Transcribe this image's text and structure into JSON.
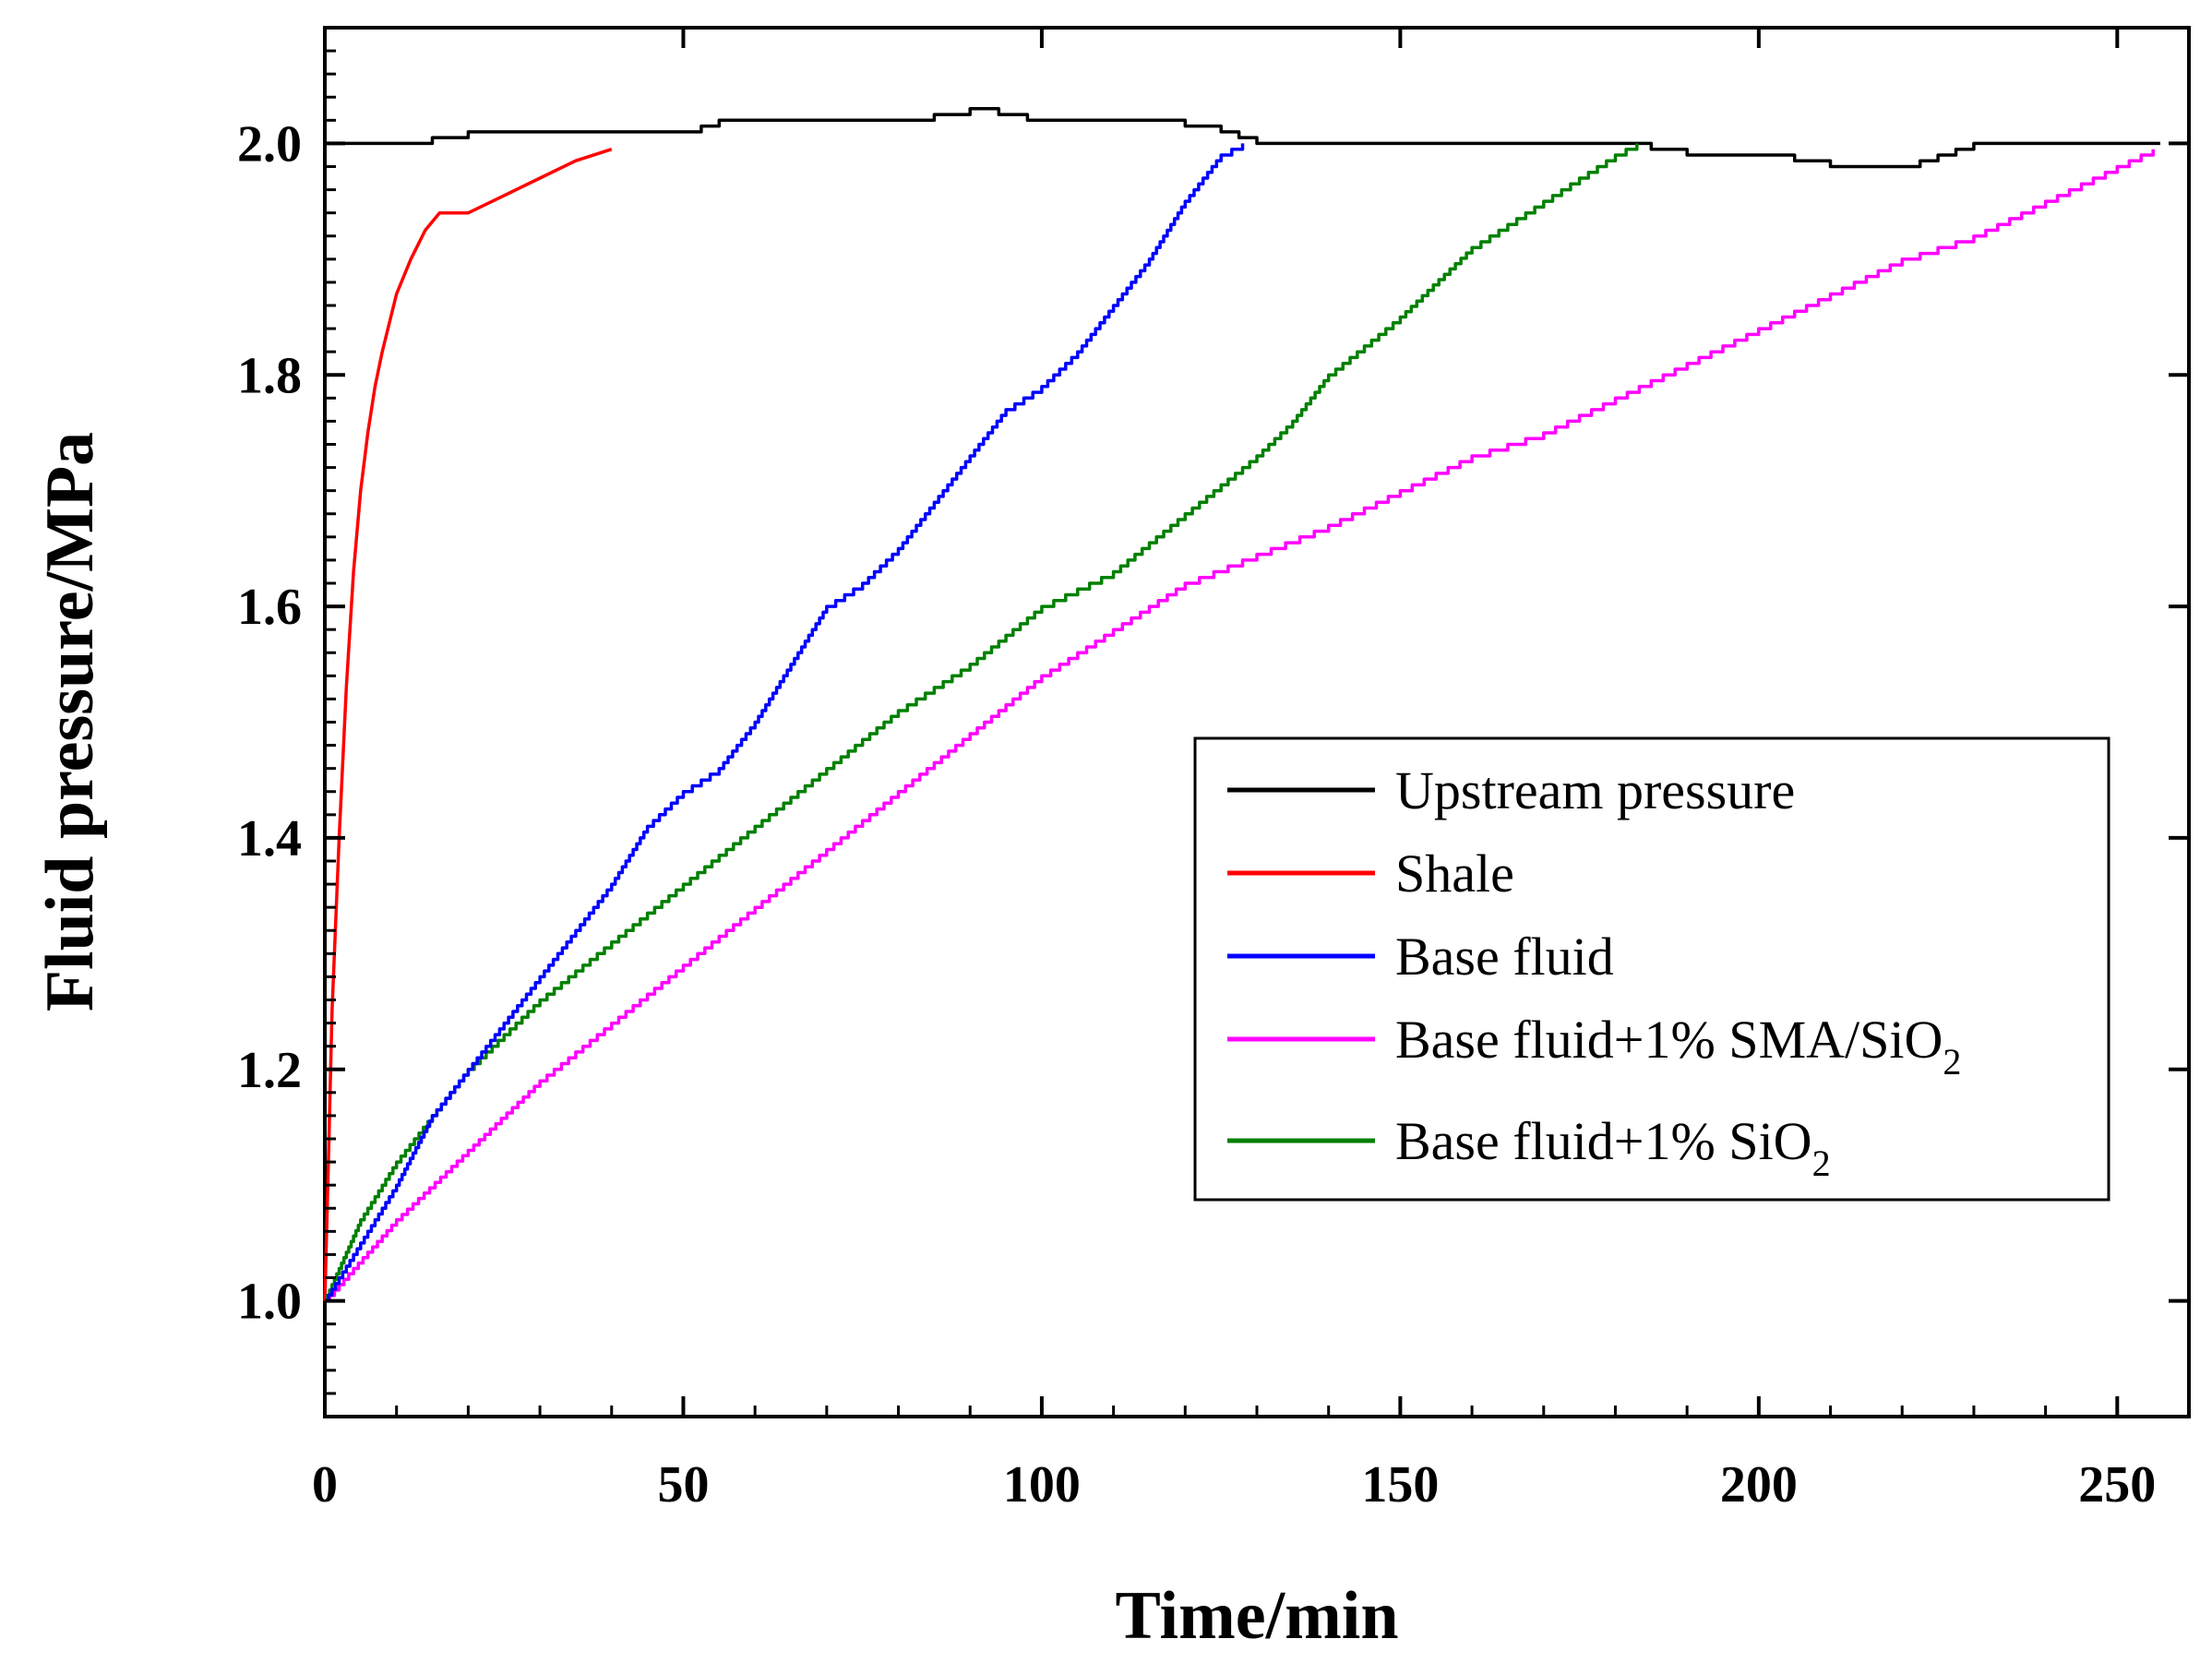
{
  "chart_data": {
    "type": "line",
    "title": "",
    "xlabel": "Time/min",
    "ylabel": "Fluid pressure/MPa",
    "xlim": [
      0,
      260
    ],
    "ylim": [
      0.9,
      2.1
    ],
    "xticks": [
      0,
      50,
      100,
      150,
      200,
      250
    ],
    "xtick_labels": [
      "0",
      "50",
      "100",
      "150",
      "200",
      "250"
    ],
    "yticks": [
      1.0,
      1.2,
      1.4,
      1.6,
      1.8,
      2.0
    ],
    "ytick_labels": [
      "1.0",
      "1.2",
      "1.4",
      "1.6",
      "1.8",
      "2.0"
    ],
    "grid": false,
    "legend_position": "center-right",
    "series": [
      {
        "name": "Upstream pressure",
        "label_main": "Upstream pressure",
        "label_sub": "",
        "color": "#000000",
        "x": [
          0,
          10,
          20,
          30,
          40,
          50,
          55,
          60,
          70,
          80,
          90,
          98,
          105,
          115,
          125,
          130,
          140,
          150,
          160,
          170,
          180,
          190,
          200,
          210,
          220,
          230,
          240,
          250,
          256
        ],
        "y": [
          2.0,
          2.0,
          2.01,
          2.01,
          2.01,
          2.01,
          2.02,
          2.02,
          2.02,
          2.02,
          2.03,
          2.02,
          2.02,
          2.02,
          2.01,
          2.0,
          2.0,
          2.0,
          2.0,
          2.0,
          2.0,
          1.99,
          1.99,
          1.98,
          1.98,
          2.0,
          2.0,
          2.0,
          2.0
        ]
      },
      {
        "name": "Shale",
        "label_main": "Shale",
        "label_sub": "",
        "color": "#ff0000",
        "x": [
          0,
          0.5,
          1,
          2,
          3,
          4,
          5,
          6,
          7,
          8,
          10,
          12,
          14,
          16,
          20,
          25,
          30,
          35,
          40
        ],
        "y": [
          1.0,
          1.12,
          1.25,
          1.4,
          1.53,
          1.63,
          1.7,
          1.75,
          1.79,
          1.82,
          1.87,
          1.9,
          1.925,
          1.94,
          1.94,
          1.955,
          1.97,
          1.985,
          1.995
        ]
      },
      {
        "name": "Base fluid",
        "label_main": "Base fluid",
        "label_sub": "",
        "color": "#0000ff",
        "x": [
          0,
          5,
          10,
          15,
          20,
          25,
          30,
          35,
          40,
          45,
          50,
          55,
          60,
          65,
          70,
          75,
          80,
          85,
          90,
          95,
          100,
          105,
          110,
          115,
          120,
          125,
          128
        ],
        "y": [
          1.0,
          1.05,
          1.1,
          1.16,
          1.2,
          1.24,
          1.28,
          1.32,
          1.36,
          1.41,
          1.44,
          1.46,
          1.5,
          1.55,
          1.6,
          1.62,
          1.65,
          1.69,
          1.73,
          1.77,
          1.79,
          1.82,
          1.86,
          1.9,
          1.95,
          1.99,
          2.0
        ]
      },
      {
        "name": "Base fluid+1% SMA/SiO2",
        "label_main": "Base fluid+1% SMA/SiO",
        "label_sub": "2",
        "color": "#ff00ff",
        "x": [
          0,
          10,
          20,
          30,
          40,
          50,
          60,
          70,
          80,
          90,
          100,
          110,
          120,
          130,
          140,
          150,
          160,
          170,
          180,
          190,
          200,
          210,
          220,
          230,
          240,
          250,
          255
        ],
        "y": [
          1.0,
          1.07,
          1.13,
          1.19,
          1.24,
          1.29,
          1.34,
          1.39,
          1.44,
          1.49,
          1.54,
          1.58,
          1.62,
          1.645,
          1.67,
          1.7,
          1.73,
          1.75,
          1.78,
          1.81,
          1.84,
          1.87,
          1.9,
          1.92,
          1.95,
          1.98,
          1.995
        ]
      },
      {
        "name": "Base fluid+1% SiO2",
        "label_main": "Base fluid+1% SiO",
        "label_sub": "2",
        "color": "#008000",
        "x": [
          0,
          5,
          10,
          15,
          20,
          25,
          30,
          40,
          50,
          60,
          70,
          80,
          90,
          100,
          110,
          120,
          130,
          135,
          140,
          150,
          160,
          170,
          180,
          183
        ],
        "y": [
          1.0,
          1.07,
          1.12,
          1.16,
          1.2,
          1.23,
          1.26,
          1.31,
          1.36,
          1.41,
          1.46,
          1.51,
          1.55,
          1.6,
          1.63,
          1.68,
          1.73,
          1.76,
          1.8,
          1.85,
          1.91,
          1.95,
          1.99,
          2.0
        ]
      }
    ]
  }
}
